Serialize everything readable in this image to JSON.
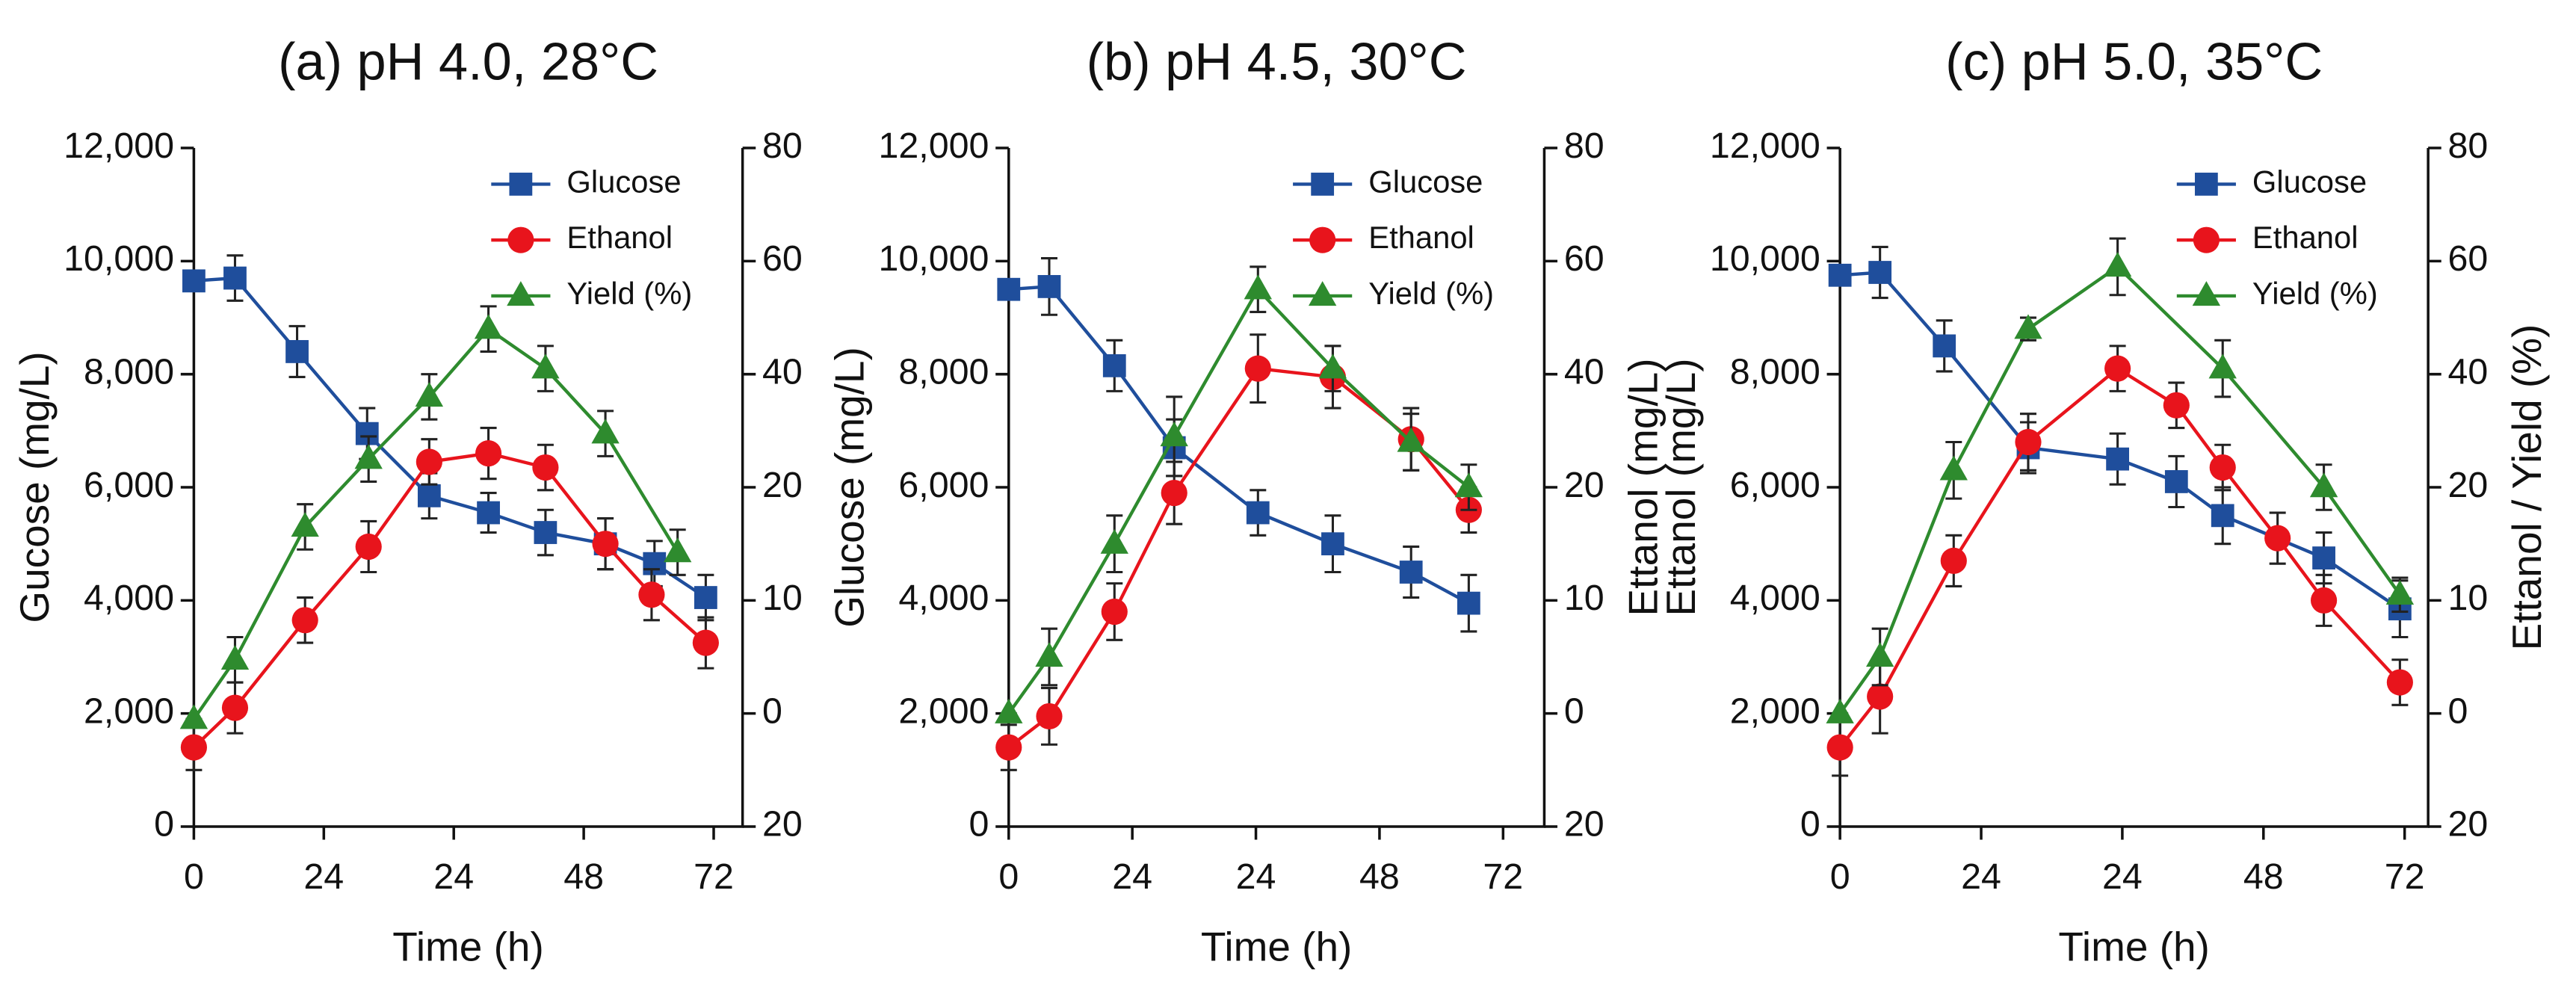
{
  "chart_data": [
    {
      "type": "line",
      "title": "(a) pH 4.0, 28°C",
      "x_label": "Time (h)",
      "y_label": "Gucose (mg/L)",
      "xlim": [
        0,
        76
      ],
      "xticks": [
        0,
        {
          "value": 18,
          "label": "24"
        },
        {
          "value": 36,
          "label": "24"
        },
        {
          "value": 54,
          "label": "48"
        },
        72
      ],
      "ylim": [
        0,
        12000
      ],
      "yticks": [
        0,
        {
          "value": 2000,
          "label": "2,000"
        },
        {
          "value": 4000,
          "label": "4,000"
        },
        {
          "value": 6000,
          "label": "6,000"
        },
        {
          "value": 8000,
          "label": "8,000"
        },
        {
          "value": 10000,
          "label": "10,000"
        },
        {
          "value": 12000,
          "label": "12,000"
        }
      ],
      "y2lim": [
        -40,
        80
      ],
      "y2ticks": [
        {
          "value": -40,
          "label": "20"
        },
        {
          "value": -20,
          "label": "0"
        },
        {
          "value": 0,
          "label": "10"
        },
        20,
        40,
        60,
        80
      ],
      "legend": "upper right",
      "series": [
        {
          "name": "Glucose",
          "color": "#1f4e9c",
          "marker": "square",
          "x": [
            0,
            5.7,
            14.3,
            24,
            32.6,
            40.8,
            48.7,
            57,
            63.8,
            70.9
          ],
          "values": [
            9650,
            9700,
            8400,
            6950,
            5850,
            5550,
            5200,
            5000,
            4650,
            4050
          ],
          "errors": [
            0,
            400,
            450,
            450,
            400,
            350,
            400,
            450,
            400,
            400
          ]
        },
        {
          "name": "Ethanol",
          "color": "#e8141c",
          "marker": "circle",
          "x": [
            0,
            5.7,
            15.4,
            24.2,
            32.6,
            40.8,
            48.7,
            57,
            63.4,
            70.9
          ],
          "values": [
            1400,
            2100,
            3650,
            4950,
            6450,
            6600,
            6350,
            5000,
            4100,
            3250
          ],
          "errors": [
            400,
            450,
            400,
            450,
            400,
            450,
            400,
            450,
            450,
            450
          ]
        },
        {
          "name": "Yield (%)",
          "color": "#2e8b2e",
          "marker": "triangle",
          "axis": "y2",
          "x": [
            0,
            5.7,
            15.4,
            24.2,
            32.6,
            40.8,
            48.7,
            57,
            67
          ],
          "values": [
            -21,
            -10.5,
            13,
            25,
            36,
            48,
            41,
            29.5,
            8.5
          ],
          "errors": [
            0,
            4,
            4,
            4,
            4,
            4,
            4,
            4,
            4
          ]
        }
      ]
    },
    {
      "type": "line",
      "title": "(b) pH 4.5, 30°C",
      "x_label": "Time (h)",
      "y_label": "Glucose (mg/L)",
      "y2_label": "Ettanol (mg/L)",
      "xlim": [
        0,
        78
      ],
      "xticks": [
        0,
        {
          "value": 18,
          "label": "24"
        },
        {
          "value": 36,
          "label": "24"
        },
        {
          "value": 54,
          "label": "48"
        },
        72
      ],
      "ylim": [
        0,
        12000
      ],
      "yticks": [
        0,
        {
          "value": 2000,
          "label": "2,000"
        },
        {
          "value": 4000,
          "label": "4,000"
        },
        {
          "value": 6000,
          "label": "6,000"
        },
        {
          "value": 8000,
          "label": "8,000"
        },
        {
          "value": 10000,
          "label": "10,000"
        },
        {
          "value": 12000,
          "label": "12,000"
        }
      ],
      "y2lim": [
        -40,
        80
      ],
      "y2ticks": [
        {
          "value": -40,
          "label": "20"
        },
        {
          "value": -20,
          "label": "0"
        },
        {
          "value": 0,
          "label": "10"
        },
        20,
        40,
        60,
        80
      ],
      "legend": "upper right",
      "series": [
        {
          "name": "Glucose",
          "color": "#1f4e9c",
          "marker": "square",
          "x": [
            0,
            5.9,
            15.4,
            24.1,
            36.3,
            47.2,
            58.6,
            67
          ],
          "values": [
            9500,
            9550,
            8150,
            6700,
            5550,
            5000,
            4500,
            3950
          ],
          "errors": [
            0,
            500,
            450,
            500,
            400,
            500,
            450,
            500
          ]
        },
        {
          "name": "Ethanol",
          "color": "#e8141c",
          "marker": "circle",
          "x": [
            0,
            5.9,
            15.4,
            24.1,
            36.3,
            47.2,
            58.6,
            67
          ],
          "values": [
            1400,
            1950,
            3800,
            5900,
            8100,
            7950,
            6850,
            5600
          ],
          "errors": [
            400,
            500,
            500,
            550,
            600,
            550,
            550,
            400
          ]
        },
        {
          "name": "Yield (%)",
          "color": "#2e8b2e",
          "marker": "triangle",
          "axis": "y2",
          "x": [
            0,
            5.9,
            15.4,
            24.1,
            36.3,
            47.2,
            58.6,
            67
          ],
          "values": [
            -20,
            -10,
            10,
            29,
            55,
            41,
            28,
            20
          ],
          "errors": [
            0,
            5,
            5,
            7,
            4,
            4,
            5,
            4
          ]
        }
      ]
    },
    {
      "type": "line",
      "title": "(c) pH 5.0, 35°C",
      "x_label": "Time (h)",
      "y_label": "Ettanol (mg/L)",
      "y2_label": "Ettanol / Yield (%)",
      "xlim": [
        0,
        75
      ],
      "xticks": [
        0,
        {
          "value": 18,
          "label": "24"
        },
        {
          "value": 36,
          "label": "24"
        },
        {
          "value": 54,
          "label": "48"
        },
        72
      ],
      "ylim": [
        0,
        12000
      ],
      "yticks": [
        0,
        {
          "value": 2000,
          "label": "2,000"
        },
        {
          "value": 4000,
          "label": "4,000"
        },
        {
          "value": 6000,
          "label": "6,000"
        },
        {
          "value": 8000,
          "label": "8,000"
        },
        {
          "value": 10000,
          "label": "10,000"
        },
        {
          "value": 12000,
          "label": "12,000"
        }
      ],
      "y2lim": [
        -40,
        80
      ],
      "y2ticks": [
        {
          "value": -40,
          "label": "20"
        },
        {
          "value": -20,
          "label": "0"
        },
        {
          "value": 0,
          "label": "10"
        },
        20,
        40,
        60,
        80
      ],
      "legend": "upper right",
      "series": [
        {
          "name": "Glucose",
          "color": "#1f4e9c",
          "marker": "square",
          "x": [
            0,
            5.1,
            13.3,
            24,
            35.4,
            42.9,
            48.8,
            61.7,
            71.4
          ],
          "values": [
            9750,
            9800,
            8500,
            6700,
            6500,
            6100,
            5500,
            4750,
            3850
          ],
          "errors": [
            0,
            450,
            450,
            450,
            450,
            450,
            500,
            450,
            500
          ]
        },
        {
          "name": "Ethanol",
          "color": "#e8141c",
          "marker": "circle",
          "x": [
            0,
            5.1,
            14.5,
            24,
            35.4,
            42.9,
            48.8,
            55.8,
            61.7,
            71.4
          ],
          "values": [
            1400,
            2300,
            4700,
            6800,
            8100,
            7450,
            6350,
            5100,
            4000,
            2550
          ],
          "errors": [
            500,
            650,
            450,
            500,
            400,
            400,
            400,
            450,
            450,
            400
          ]
        },
        {
          "name": "Yield (%)",
          "color": "#2e8b2e",
          "marker": "triangle",
          "axis": "y2",
          "x": [
            0,
            5.1,
            14.5,
            24,
            35.4,
            48.8,
            61.7,
            71.4
          ],
          "values": [
            -20,
            -10,
            23,
            48,
            59,
            41,
            20,
            1
          ],
          "errors": [
            0,
            5,
            5,
            2,
            5,
            5,
            4,
            3
          ]
        }
      ]
    }
  ]
}
